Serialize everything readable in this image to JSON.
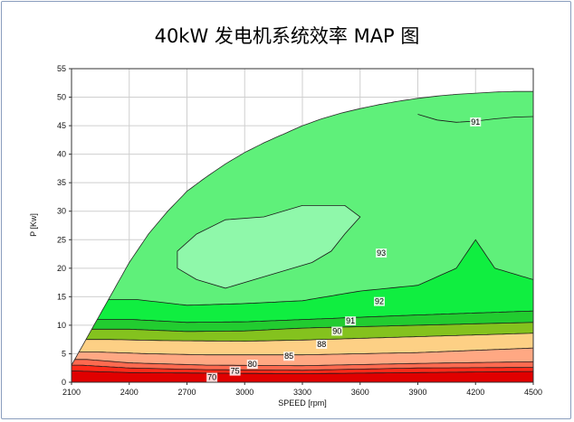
{
  "chart_data": {
    "type": "contour",
    "title": "40kW 发电机系统效率 MAP 图",
    "xlabel": "SPEED [rpm]",
    "ylabel": "P [Kw]",
    "xlim": [
      2100,
      4500
    ],
    "ylim": [
      0,
      55
    ],
    "x_ticks": [
      "2100",
      "2400",
      "2700",
      "3000",
      "3300",
      "3600",
      "3900",
      "4200",
      "4500"
    ],
    "y_ticks": [
      "0",
      "5",
      "10",
      "15",
      "20",
      "25",
      "30",
      "35",
      "40",
      "45",
      "50",
      "55"
    ],
    "grid": true,
    "max_power_boundary": [
      [
        2100,
        3
      ],
      [
        2150,
        6
      ],
      [
        2200,
        9
      ],
      [
        2250,
        12
      ],
      [
        2300,
        15
      ],
      [
        2350,
        18
      ],
      [
        2400,
        21
      ],
      [
        2500,
        26
      ],
      [
        2600,
        30
      ],
      [
        2700,
        33.5
      ],
      [
        2800,
        36
      ],
      [
        2900,
        38.3
      ],
      [
        3000,
        40.3
      ],
      [
        3100,
        42
      ],
      [
        3200,
        43.5
      ],
      [
        3300,
        45
      ],
      [
        3400,
        46.2
      ],
      [
        3500,
        47.2
      ],
      [
        3600,
        48
      ],
      [
        3700,
        48.7
      ],
      [
        3800,
        49.3
      ],
      [
        3900,
        49.8
      ],
      [
        4000,
        50.2
      ],
      [
        4100,
        50.5
      ],
      [
        4200,
        50.7
      ],
      [
        4300,
        50.9
      ],
      [
        4400,
        51
      ],
      [
        4500,
        51
      ]
    ],
    "efficiency_bands": [
      {
        "min_efficiency": 0,
        "color": "#e00000",
        "boundary": [
          [
            2100,
            0
          ],
          [
            4500,
            0
          ]
        ]
      },
      {
        "min_efficiency": 70,
        "color": "#ff2a1a",
        "boundary": [
          [
            2100,
            2
          ],
          [
            2400,
            1.7
          ],
          [
            2800,
            1.6
          ],
          [
            3300,
            1.5
          ],
          [
            3900,
            1.7
          ],
          [
            4500,
            1.9
          ]
        ]
      },
      {
        "min_efficiency": 75,
        "color": "#ff6a50",
        "boundary": [
          [
            2150,
            3
          ],
          [
            2400,
            2.5
          ],
          [
            2800,
            2.2
          ],
          [
            3300,
            2.1
          ],
          [
            3900,
            2.5
          ],
          [
            4500,
            2.6
          ]
        ]
      },
      {
        "min_efficiency": 80,
        "color": "#ffa883",
        "boundary": [
          [
            2180,
            4
          ],
          [
            2400,
            3.4
          ],
          [
            2800,
            3.0
          ],
          [
            3300,
            2.9
          ],
          [
            3900,
            3.3
          ],
          [
            4500,
            3.6
          ]
        ]
      },
      {
        "min_efficiency": 85,
        "color": "#fdd085",
        "boundary": [
          [
            2240,
            5.3
          ],
          [
            2500,
            5
          ],
          [
            2800,
            4.8
          ],
          [
            3300,
            4.8
          ],
          [
            3900,
            5.2
          ],
          [
            4500,
            6
          ]
        ]
      },
      {
        "min_efficiency": 88,
        "color": "#84c21e",
        "boundary": [
          [
            2300,
            7.5
          ],
          [
            2600,
            7.3
          ],
          [
            3000,
            7.2
          ],
          [
            3300,
            7.4
          ],
          [
            3900,
            8
          ],
          [
            4500,
            8.6
          ]
        ]
      },
      {
        "min_efficiency": 90,
        "color": "#22cc30",
        "boundary": [
          [
            2400,
            9.3
          ],
          [
            2700,
            8.9
          ],
          [
            3000,
            9
          ],
          [
            3300,
            9.5
          ],
          [
            3900,
            10
          ],
          [
            4500,
            10.5
          ]
        ]
      },
      {
        "min_efficiency": 91,
        "color": "#10ee40",
        "boundary": [
          [
            2420,
            11
          ],
          [
            2700,
            10.5
          ],
          [
            3000,
            10.6
          ],
          [
            3300,
            11
          ],
          [
            3900,
            11.8
          ],
          [
            4500,
            12.5
          ]
        ]
      },
      {
        "min_efficiency": 92,
        "color": "#5ff07a",
        "boundary": [
          [
            2440,
            14.5
          ],
          [
            2700,
            13.5
          ],
          [
            3000,
            13.8
          ],
          [
            3300,
            14.3
          ],
          [
            3600,
            16
          ],
          [
            3900,
            17
          ],
          [
            4100,
            20
          ],
          [
            4200,
            25
          ],
          [
            4300,
            20
          ],
          [
            4500,
            18
          ]
        ]
      },
      {
        "min_efficiency": 93,
        "color": "#8ff8aa",
        "region": [
          [
            2750,
            18
          ],
          [
            2900,
            16.5
          ],
          [
            3100,
            18.5
          ],
          [
            3350,
            21
          ],
          [
            3450,
            23
          ],
          [
            3520,
            26
          ],
          [
            3600,
            29
          ],
          [
            3520,
            31
          ],
          [
            3300,
            31
          ],
          [
            3100,
            29
          ],
          [
            2900,
            28.5
          ],
          [
            2750,
            26
          ],
          [
            2650,
            23
          ],
          [
            2650,
            20
          ]
        ]
      }
    ],
    "contour_labels": [
      {
        "text": "70",
        "x": 2830,
        "y": 0.7
      },
      {
        "text": "75",
        "x": 2950,
        "y": 1.8
      },
      {
        "text": "80",
        "x": 3040,
        "y": 3.0
      },
      {
        "text": "85",
        "x": 3230,
        "y": 4.4
      },
      {
        "text": "88",
        "x": 3400,
        "y": 6.5
      },
      {
        "text": "90",
        "x": 3480,
        "y": 8.8
      },
      {
        "text": "91",
        "x": 3550,
        "y": 10.6
      },
      {
        "text": "92",
        "x": 3700,
        "y": 14.0
      },
      {
        "text": "93",
        "x": 3710,
        "y": 22.5
      },
      {
        "text": "91",
        "x": 4200,
        "y": 45.5
      }
    ]
  }
}
